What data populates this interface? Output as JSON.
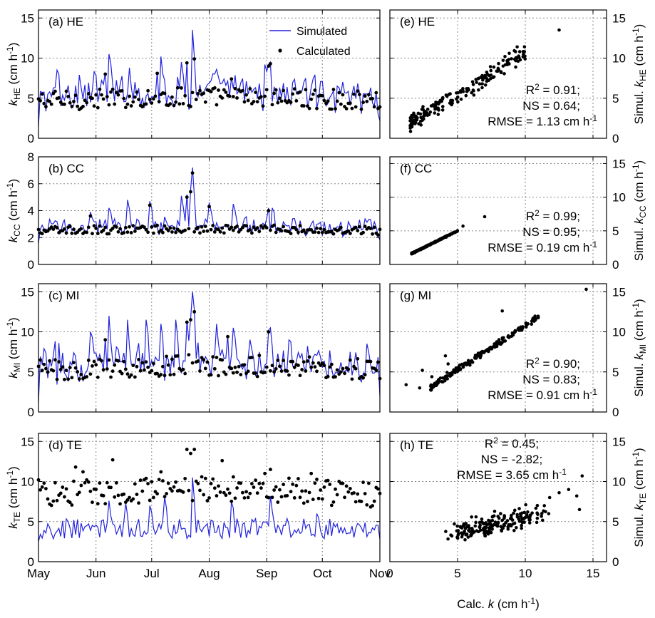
{
  "colors": {
    "simulated": "#2222dd",
    "calculated": "#000000",
    "grid": "#888888"
  },
  "xlabel_right": [
    "Calc. ",
    "k",
    " (cm h",
    "-1",
    ")"
  ],
  "chart_data": [
    {
      "type": "line",
      "panel_label": "(a) HE",
      "ylabel": [
        "k",
        "HE",
        " (cm h",
        "-1",
        ")"
      ],
      "ylim": [
        0,
        16
      ],
      "yticks": [
        "0",
        "5",
        "10",
        "15"
      ],
      "ytick_values": [
        0,
        5,
        10,
        15
      ],
      "xlim": [
        "May",
        "Nov"
      ],
      "xticks": [
        "May",
        "Jun",
        "Jul",
        "Aug",
        "Sep",
        "Oct",
        "Nov"
      ],
      "legend": {
        "simulated": "Simulated",
        "calculated": "Calculated",
        "position": "top-right"
      },
      "mean_calc": 4.6,
      "amp_calc": 1.4,
      "mean_sim": 5.0,
      "amp_sim": 2.2,
      "peaks_sim": [
        [
          10,
          8.5
        ],
        [
          22,
          7.9
        ],
        [
          30,
          8.3
        ],
        [
          38,
          10.5
        ],
        [
          49,
          8.8
        ],
        [
          66,
          10.2
        ],
        [
          77,
          9.5
        ],
        [
          83,
          13.5
        ],
        [
          96,
          8.6
        ],
        [
          122,
          9.2
        ],
        [
          143,
          7.0
        ]
      ],
      "calc_high": [
        [
          36,
          8.0
        ],
        [
          64,
          8.1
        ],
        [
          80,
          9.4
        ],
        [
          84,
          9.9
        ],
        [
          104,
          7.4
        ],
        [
          124,
          9.0
        ],
        [
          125,
          9.3
        ]
      ],
      "start": 1.5,
      "end": 2.2
    },
    {
      "type": "line",
      "panel_label": "(b) CC",
      "ylabel": [
        "k",
        "CC",
        " (cm h",
        "-1",
        ")"
      ],
      "ylim": [
        0,
        8
      ],
      "yticks": [
        "0",
        "2",
        "4",
        "6",
        "8"
      ],
      "ytick_values": [
        0,
        2,
        4,
        6,
        8
      ],
      "xlim": [
        "May",
        "Nov"
      ],
      "xticks": [
        "May",
        "Jun",
        "Jul",
        "Aug",
        "Sep",
        "Oct",
        "Nov"
      ],
      "mean_calc": 2.5,
      "amp_calc": 0.35,
      "mean_sim": 2.8,
      "amp_sim": 0.8,
      "peaks_sim": [
        [
          28,
          3.9
        ],
        [
          38,
          4.2
        ],
        [
          48,
          4.8
        ],
        [
          60,
          4.7
        ],
        [
          77,
          5.1
        ],
        [
          83,
          7.2
        ],
        [
          92,
          4.6
        ],
        [
          105,
          4.5
        ],
        [
          126,
          4.2
        ],
        [
          147,
          3.0
        ]
      ],
      "calc_high": [
        [
          28,
          3.6
        ],
        [
          60,
          4.4
        ],
        [
          80,
          5.0
        ],
        [
          82,
          5.4
        ],
        [
          83,
          6.8
        ],
        [
          92,
          4.3
        ],
        [
          124,
          4.0
        ]
      ],
      "start": 1.6,
      "end": 1.8
    },
    {
      "type": "line",
      "panel_label": "(c) MI",
      "ylabel": [
        "k",
        "MI",
        " (cm h",
        "-1",
        ")"
      ],
      "ylim": [
        0,
        16
      ],
      "yticks": [
        "0",
        "5",
        "10",
        "15"
      ],
      "ytick_values": [
        0,
        5,
        10,
        15
      ],
      "xlim": [
        "May",
        "Nov"
      ],
      "xticks": [
        "May",
        "Jun",
        "Jul",
        "Aug",
        "Sep",
        "Oct",
        "Nov"
      ],
      "mean_calc": 5.2,
      "amp_calc": 1.5,
      "mean_sim": 6.0,
      "amp_sim": 2.6,
      "peaks_sim": [
        [
          28,
          10.0
        ],
        [
          38,
          12.0
        ],
        [
          48,
          11.5
        ],
        [
          58,
          11.5
        ],
        [
          66,
          11.0
        ],
        [
          74,
          11.5
        ],
        [
          83,
          15.0
        ],
        [
          96,
          11.0
        ],
        [
          105,
          10.5
        ],
        [
          125,
          10.5
        ],
        [
          135,
          9.0
        ]
      ],
      "calc_high": [
        [
          36,
          9.0
        ],
        [
          80,
          11.2
        ],
        [
          82,
          11.5
        ],
        [
          84,
          12.5
        ],
        [
          102,
          9.4
        ],
        [
          124,
          10.0
        ]
      ],
      "start": 1.2,
      "end": 2.0
    },
    {
      "type": "line",
      "panel_label": "(d) TE",
      "ylabel": [
        "k",
        "TE",
        " (cm h",
        "-1",
        ")"
      ],
      "ylim": [
        0,
        16
      ],
      "yticks": [
        "0",
        "5",
        "10",
        "15"
      ],
      "ytick_values": [
        0,
        5,
        10,
        15
      ],
      "xlim": [
        "May",
        "Nov"
      ],
      "xticks": [
        "May",
        "Jun",
        "Jul",
        "Aug",
        "Sep",
        "Oct",
        "Nov"
      ],
      "mean_calc": 8.3,
      "amp_calc": 1.8,
      "mean_sim": 4.1,
      "amp_sim": 1.3,
      "peaks_sim": [
        [
          38,
          7.6
        ],
        [
          47,
          7.3
        ],
        [
          60,
          7.0
        ],
        [
          68,
          8.1
        ],
        [
          83,
          10.5
        ],
        [
          104,
          7.5
        ],
        [
          125,
          8.2
        ],
        [
          150,
          6.0
        ]
      ],
      "calc_high": [
        [
          0,
          10.2
        ],
        [
          20,
          11.8
        ],
        [
          24,
          11.2
        ],
        [
          40,
          12.7
        ],
        [
          66,
          11.2
        ],
        [
          80,
          14.0
        ],
        [
          82,
          13.5
        ],
        [
          84,
          14.0
        ],
        [
          99,
          12.6
        ],
        [
          122,
          11.0
        ],
        [
          125,
          11.5
        ],
        [
          147,
          11.0
        ]
      ],
      "start": 2.5,
      "end": 2.8
    },
    {
      "type": "scatter",
      "panel_label": "(e) HE",
      "ylabel_right": [
        "Simul. ",
        "k",
        "HE",
        " (cm h",
        "-1",
        ")"
      ],
      "xlim": [
        0,
        16
      ],
      "ylim": [
        0,
        16
      ],
      "xticks": [
        "0",
        "5",
        "10",
        "15"
      ],
      "yticks": [
        "0",
        "5",
        "10",
        "15"
      ],
      "tick_values": [
        0,
        5,
        10,
        15
      ],
      "stats": [
        "R",
        "2",
        " = 0.91;",
        "NS = 0.64;",
        "RMSE = 1.13 cm h",
        "-1"
      ],
      "n": 185,
      "xmin": 1.5,
      "xmax": 10.0,
      "slope": 1.05,
      "intercept": 0.2,
      "noise": 0.75,
      "extra": [
        [
          12.5,
          13.5
        ],
        [
          9.4,
          11.4
        ],
        [
          8.5,
          10.2
        ]
      ]
    },
    {
      "type": "scatter",
      "panel_label": "(f) CC",
      "ylabel_right": [
        "Simul. ",
        "k",
        "CC",
        " (cm h",
        "-1",
        ")"
      ],
      "xlim": [
        0,
        16
      ],
      "ylim": [
        0,
        16
      ],
      "xticks": [
        "0",
        "5",
        "10",
        "15"
      ],
      "yticks": [
        "0",
        "5",
        "10",
        "15"
      ],
      "tick_values": [
        0,
        5,
        10,
        15
      ],
      "stats": [
        "R",
        "2",
        " = 0.99;",
        "NS = 0.95;",
        "RMSE = 0.19 cm h",
        "-1"
      ],
      "n": 185,
      "xmin": 1.6,
      "xmax": 5.0,
      "slope": 1.0,
      "intercept": 0.0,
      "noise": 0.06,
      "extra": [
        [
          5.4,
          5.7
        ],
        [
          7.0,
          7.1
        ]
      ]
    },
    {
      "type": "scatter",
      "panel_label": "(g) MI",
      "ylabel_right": [
        "Simul. ",
        "k",
        "MI",
        " (cm h",
        "-1",
        ")"
      ],
      "xlim": [
        0,
        16
      ],
      "ylim": [
        0,
        16
      ],
      "xticks": [
        "0",
        "5",
        "10",
        "15"
      ],
      "yticks": [
        "0",
        "5",
        "10",
        "15"
      ],
      "tick_values": [
        0,
        5,
        10,
        15
      ],
      "stats": [
        "R",
        "2",
        " = 0.90;",
        "NS = 0.83;",
        "RMSE = 0.91 cm h",
        "-1"
      ],
      "n": 185,
      "xmin": 3.0,
      "xmax": 11.0,
      "slope": 1.1,
      "intercept": -0.2,
      "noise": 0.3,
      "extra": [
        [
          1.2,
          3.4
        ],
        [
          2.4,
          5.2
        ],
        [
          3.1,
          4.4
        ],
        [
          4.1,
          7.0
        ],
        [
          4.3,
          6.0
        ],
        [
          8.3,
          12.6
        ],
        [
          14.5,
          15.3
        ],
        [
          2.2,
          3.0
        ]
      ]
    },
    {
      "type": "scatter",
      "panel_label": "(h) TE",
      "ylabel_right": [
        "Simul. ",
        "k",
        "TE",
        " (cm h",
        "-1",
        ")"
      ],
      "xlim": [
        0,
        16
      ],
      "ylim": [
        0,
        16
      ],
      "xticks": [
        "0",
        "5",
        "10",
        "15"
      ],
      "yticks": [
        "0",
        "5",
        "10",
        "15"
      ],
      "tick_values": [
        0,
        5,
        10,
        15
      ],
      "stats": [
        "R",
        "2",
        " = 0.45;",
        "NS = -2.82;",
        "RMSE = 3.65 cm h",
        "-1"
      ],
      "n": 185,
      "xmin": 5.0,
      "xmax": 11.0,
      "slope": 0.45,
      "intercept": 1.2,
      "noise": 0.9,
      "extra": [
        [
          14.2,
          10.7
        ],
        [
          13.8,
          8.2
        ],
        [
          12.5,
          8.6
        ],
        [
          14.0,
          6.5
        ],
        [
          11.8,
          8.0
        ],
        [
          13.2,
          9.0
        ]
      ]
    }
  ]
}
